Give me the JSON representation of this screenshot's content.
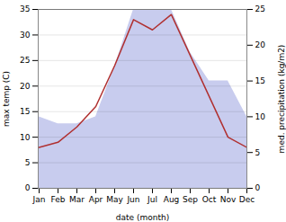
{
  "chart_data": {
    "type": "line",
    "xlabel": "date (month)",
    "ylabel": "max temp (C)",
    "y2label": "med. precipitation (kg/m2)",
    "categories": [
      "Jan",
      "Feb",
      "Mar",
      "Apr",
      "May",
      "Jun",
      "Jul",
      "Aug",
      "Sep",
      "Oct",
      "Nov",
      "Dec"
    ],
    "series": [
      {
        "type": "area",
        "axis": "y2",
        "color": "#c8ccee",
        "values": [
          10,
          9,
          9,
          10,
          17,
          25,
          25,
          25,
          19,
          15,
          15,
          10
        ]
      },
      {
        "type": "line",
        "color": "#b03030",
        "values": [
          8,
          9,
          12,
          16,
          24,
          33,
          31,
          34,
          26,
          18,
          10,
          8
        ]
      }
    ],
    "ylim": [
      0,
      35
    ],
    "yticks": [
      0,
      5,
      10,
      15,
      20,
      25,
      30,
      35
    ],
    "y2lim": [
      0,
      25
    ],
    "y2ticks": [
      0,
      5,
      10,
      15,
      20,
      25
    ],
    "grid": true
  }
}
